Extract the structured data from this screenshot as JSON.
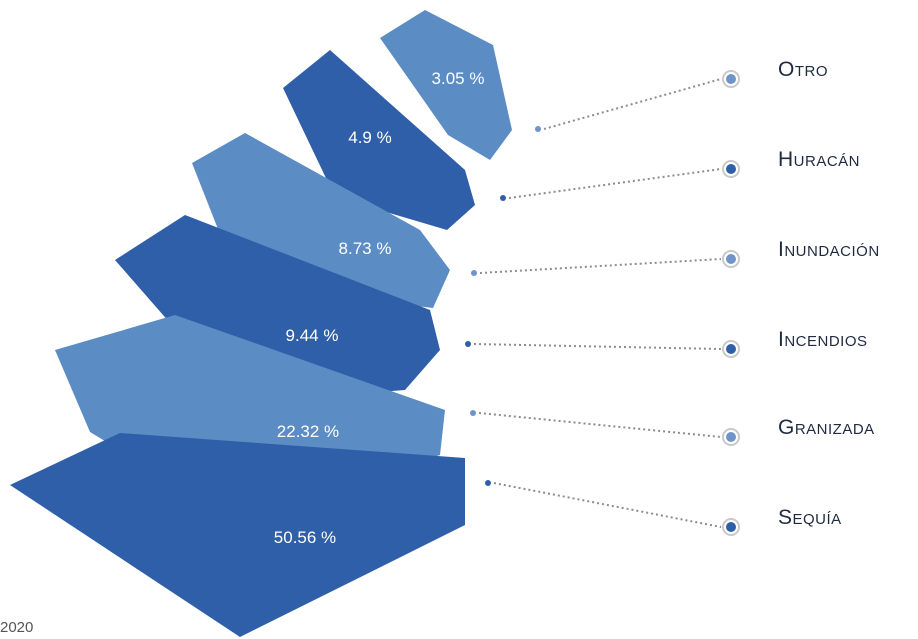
{
  "chart_data": {
    "type": "bar",
    "categories": [
      "Sequía",
      "Granizada",
      "Incendios",
      "Inundación",
      "Huracán",
      "Otro"
    ],
    "values": [
      50.56,
      22.32,
      9.44,
      8.73,
      4.9,
      3.05
    ],
    "value_labels": [
      "50.56 %",
      "22.32 %",
      "9.44 %",
      "8.73 %",
      "4.9 %",
      "3.05 %"
    ],
    "colors": [
      "#2f5fa8",
      "#5b8cc4",
      "#2f5fa8",
      "#5b8cc4",
      "#2f5fa8",
      "#5b8cc4"
    ],
    "dot_colors": [
      "#2f5fa8",
      "#6f95c8",
      "#2f5fa8",
      "#6f95c8",
      "#2f5fa8",
      "#6f95c8"
    ],
    "legend": "right",
    "grid": false
  },
  "footer": {
    "text": "2020"
  }
}
